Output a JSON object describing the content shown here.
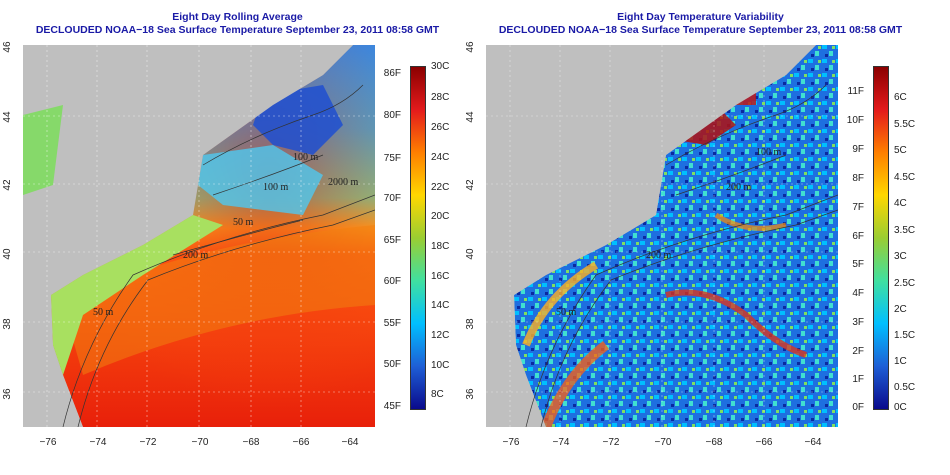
{
  "left_panel": {
    "title_line1": "Eight Day Rolling Average",
    "title_line2": "DECLOUDED NOAA−18 Sea Surface Temperature September 23, 2011 08:58 GMT",
    "x_ticks": [
      "−76",
      "−74",
      "−72",
      "−70",
      "−68",
      "−66",
      "−64"
    ],
    "y_ticks": [
      "36",
      "38",
      "40",
      "42",
      "44",
      "46"
    ],
    "colorbar": {
      "fahrenheit_labels": [
        "86F",
        "80F",
        "75F",
        "70F",
        "65F",
        "60F",
        "55F",
        "50F",
        "45F"
      ],
      "celsius_labels": [
        "30C",
        "28C",
        "26C",
        "24C",
        "22C",
        "20C",
        "18C",
        "16C",
        "14C",
        "12C",
        "10C",
        "8C"
      ],
      "colors_top_to_bottom": [
        "#8b0000",
        "#e31a1c",
        "#ff7f00",
        "#ffd700",
        "#9acd32",
        "#40e0a0",
        "#00bfff",
        "#1e5fd6",
        "#0a0a8c"
      ]
    },
    "contour_labels": [
      "100 m",
      "2000 m",
      "100 m",
      "50 m",
      "200 m",
      "50 m"
    ]
  },
  "right_panel": {
    "title_line1": "Eight Day Temperature Variability",
    "title_line2": "DECLOUDED NOAA−18 Sea Surface Temperature September 23, 2011 08:58 GMT",
    "x_ticks": [
      "−76",
      "−74",
      "−72",
      "−70",
      "−68",
      "−66",
      "−64"
    ],
    "y_ticks": [
      "36",
      "38",
      "40",
      "42",
      "44",
      "46"
    ],
    "colorbar": {
      "fahrenheit_labels": [
        "11F",
        "10F",
        "9F",
        "8F",
        "7F",
        "6F",
        "5F",
        "4F",
        "3F",
        "2F",
        "1F",
        "0F"
      ],
      "celsius_labels": [
        "6C",
        "5.5C",
        "5C",
        "4.5C",
        "4C",
        "3.5C",
        "3C",
        "2.5C",
        "2C",
        "1.5C",
        "1C",
        "0.5C",
        "0C"
      ],
      "colors_top_to_bottom": [
        "#8b0000",
        "#e31a1c",
        "#ff7f00",
        "#ffd700",
        "#9acd32",
        "#40e0a0",
        "#00bfff",
        "#1e5fd6",
        "#0a0a8c"
      ]
    },
    "contour_labels": [
      "100 m",
      "200 m",
      "200 m",
      "50 m"
    ]
  }
}
